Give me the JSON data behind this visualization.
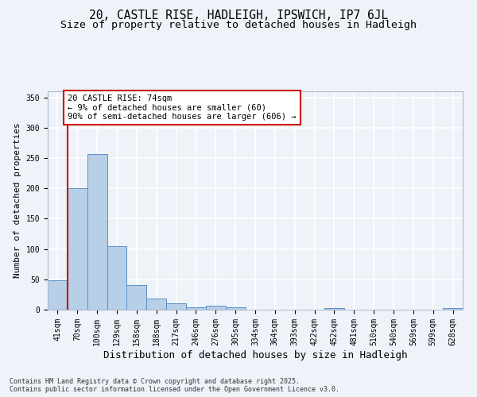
{
  "title": "20, CASTLE RISE, HADLEIGH, IPSWICH, IP7 6JL",
  "subtitle": "Size of property relative to detached houses in Hadleigh",
  "xlabel": "Distribution of detached houses by size in Hadleigh",
  "ylabel": "Number of detached properties",
  "categories": [
    "41sqm",
    "70sqm",
    "100sqm",
    "129sqm",
    "158sqm",
    "188sqm",
    "217sqm",
    "246sqm",
    "276sqm",
    "305sqm",
    "334sqm",
    "364sqm",
    "393sqm",
    "422sqm",
    "452sqm",
    "481sqm",
    "510sqm",
    "540sqm",
    "569sqm",
    "599sqm",
    "628sqm"
  ],
  "values": [
    48,
    200,
    256,
    105,
    40,
    18,
    10,
    4,
    6,
    4,
    0,
    0,
    0,
    0,
    2,
    0,
    0,
    0,
    0,
    0,
    2
  ],
  "bar_color": "#b8cfe8",
  "bar_edge_color": "#5b8fc9",
  "vline_color": "#cc0000",
  "annotation_text": "20 CASTLE RISE: 74sqm\n← 9% of detached houses are smaller (60)\n90% of semi-detached houses are larger (606) →",
  "annotation_box_color": "#ffffff",
  "annotation_box_edge": "#cc0000",
  "background_color": "#eef2f9",
  "grid_color": "#ffffff",
  "ylim": [
    0,
    360
  ],
  "yticks": [
    0,
    50,
    100,
    150,
    200,
    250,
    300,
    350
  ],
  "footer": "Contains HM Land Registry data © Crown copyright and database right 2025.\nContains public sector information licensed under the Open Government Licence v3.0.",
  "title_fontsize": 10.5,
  "subtitle_fontsize": 9.5,
  "xlabel_fontsize": 9,
  "ylabel_fontsize": 8,
  "tick_fontsize": 7,
  "annotation_fontsize": 7.5,
  "footer_fontsize": 6
}
